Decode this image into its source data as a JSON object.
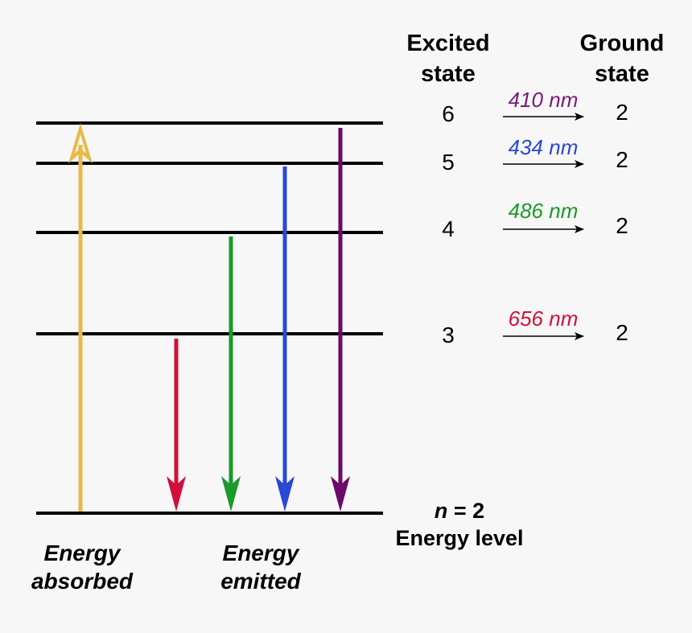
{
  "headers": {
    "excited_line1": "Excited",
    "excited_line2": "state",
    "ground_line1": "Ground",
    "ground_line2": "state"
  },
  "transitions": [
    {
      "from": "6",
      "to": "2",
      "wavelength": "410 nm",
      "color": "#7a1a7a"
    },
    {
      "from": "5",
      "to": "2",
      "wavelength": "434 nm",
      "color": "#2a48d6"
    },
    {
      "from": "4",
      "to": "2",
      "wavelength": "486 nm",
      "color": "#1a9a2a"
    },
    {
      "from": "3",
      "to": "2",
      "wavelength": "656 nm",
      "color": "#d0103a"
    }
  ],
  "bottom_level": {
    "n_label": "n",
    "n_value": " = 2",
    "label": "Energy level"
  },
  "captions": {
    "absorbed_line1": "Energy",
    "absorbed_line2": "absorbed",
    "emitted_line1": "Energy",
    "emitted_line2": "emitted"
  },
  "colors": {
    "absorbed_arrow": "#e8b94a",
    "level_line": "#000000",
    "emit_n3": "#d0103a",
    "emit_n4": "#1a9a2a",
    "emit_n5": "#2a48d6",
    "emit_n6": "#6a0a6a"
  }
}
